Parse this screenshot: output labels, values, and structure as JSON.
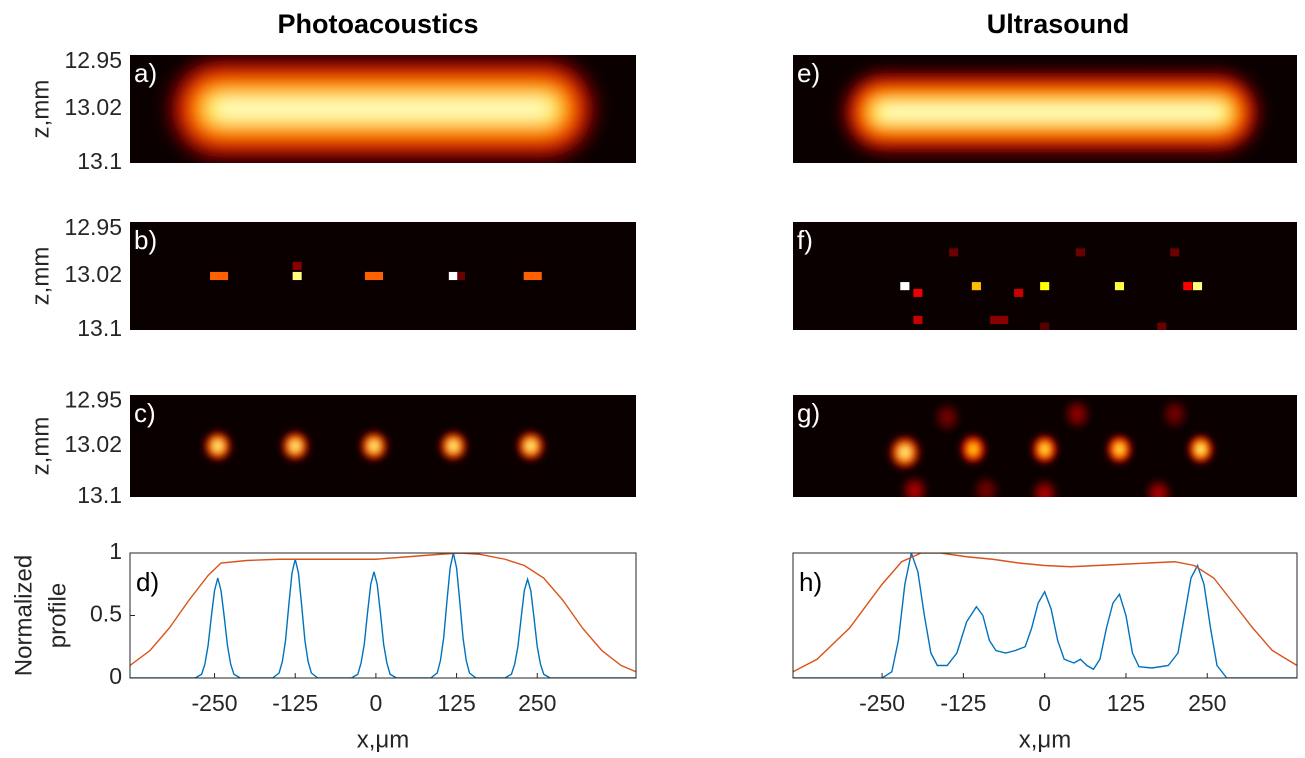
{
  "titles": [
    "Photoacoustics",
    "Ultrasound"
  ],
  "chart_data": [
    {
      "type": "heatmap",
      "label": "a)",
      "ylabel": [
        "z,mm"
      ],
      "colormap": "hot",
      "style": "blur",
      "xlim": [
        -381,
        403
      ],
      "ylim": [
        13.1,
        12.94
      ],
      "yticks": [
        12.95,
        13.02,
        13.1
      ],
      "spots": [
        {
          "x": 10,
          "z": 13.02,
          "w": 660,
          "h": 0.15,
          "intensity": 1
        }
      ]
    },
    {
      "type": "heatmap",
      "label": "b)",
      "ylabel": [
        "z,mm"
      ],
      "colormap": "hot",
      "style": "pixel",
      "xlim": [
        -381,
        403
      ],
      "ylim": [
        13.1,
        12.94
      ],
      "yticks": [
        12.95,
        13.02,
        13.1
      ],
      "spots": [
        {
          "x": -243,
          "z": 13.02,
          "w": 28,
          "h": 0.012,
          "intensity": 0.55
        },
        {
          "x": -122,
          "z": 13.02,
          "w": 14,
          "h": 0.012,
          "intensity": 0.9
        },
        {
          "x": -122,
          "z": 13.005,
          "w": 14,
          "h": 0.012,
          "intensity": 0.2
        },
        {
          "x": -3,
          "z": 13.02,
          "w": 28,
          "h": 0.012,
          "intensity": 0.55
        },
        {
          "x": 120,
          "z": 13.02,
          "w": 14,
          "h": 0.012,
          "intensity": 1
        },
        {
          "x": 132,
          "z": 13.02,
          "w": 12,
          "h": 0.012,
          "intensity": 0.15
        },
        {
          "x": 243,
          "z": 13.02,
          "w": 28,
          "h": 0.012,
          "intensity": 0.55
        }
      ]
    },
    {
      "type": "heatmap",
      "label": "c)",
      "ylabel": [
        "z,mm"
      ],
      "colormap": "hot",
      "style": "blur",
      "xlim": [
        -381,
        403
      ],
      "ylim": [
        13.1,
        12.94
      ],
      "yticks": [
        12.95,
        13.02,
        13.1
      ],
      "spots": [
        {
          "x": -245,
          "z": 13.02,
          "w": 42,
          "h": 0.045,
          "intensity": 1
        },
        {
          "x": -125,
          "z": 13.02,
          "w": 42,
          "h": 0.045,
          "intensity": 1
        },
        {
          "x": -3,
          "z": 13.02,
          "w": 42,
          "h": 0.045,
          "intensity": 1
        },
        {
          "x": 120,
          "z": 13.02,
          "w": 42,
          "h": 0.045,
          "intensity": 1
        },
        {
          "x": 240,
          "z": 13.02,
          "w": 42,
          "h": 0.045,
          "intensity": 1
        }
      ]
    },
    {
      "type": "line",
      "label": "d)",
      "ylabel": [
        "Normalized",
        "profile"
      ],
      "xlabel": "x,μm",
      "xlim": [
        -381,
        403
      ],
      "ylim": [
        0,
        1
      ],
      "yticks": [
        0,
        0.5,
        1
      ],
      "xticks": [
        -250,
        -125,
        0,
        125,
        250
      ],
      "series": [
        {
          "color": "#0072bd",
          "x": [
            -381,
            -280,
            -270,
            -265,
            -260,
            -255,
            -250,
            -245,
            -240,
            -235,
            -230,
            -225,
            -220,
            -210,
            -160,
            -150,
            -145,
            -140,
            -135,
            -130,
            -125,
            -120,
            -115,
            -110,
            -105,
            -100,
            -90,
            -38,
            -28,
            -23,
            -18,
            -13,
            -8,
            -3,
            2,
            7,
            12,
            17,
            22,
            32,
            85,
            95,
            100,
            105,
            110,
            115,
            120,
            125,
            130,
            135,
            140,
            145,
            155,
            200,
            210,
            215,
            220,
            225,
            230,
            235,
            240,
            245,
            250,
            255,
            260,
            270,
            403
          ],
          "values": [
            0,
            0,
            0.03,
            0.11,
            0.26,
            0.49,
            0.7,
            0.8,
            0.7,
            0.49,
            0.26,
            0.11,
            0.03,
            0,
            0,
            0.04,
            0.13,
            0.3,
            0.58,
            0.84,
            0.95,
            0.84,
            0.58,
            0.3,
            0.13,
            0.04,
            0,
            0,
            0.03,
            0.12,
            0.27,
            0.52,
            0.75,
            0.85,
            0.75,
            0.52,
            0.27,
            0.12,
            0.03,
            0,
            0,
            0.04,
            0.14,
            0.32,
            0.61,
            0.88,
            1,
            0.88,
            0.61,
            0.32,
            0.14,
            0.04,
            0,
            0,
            0.03,
            0.11,
            0.25,
            0.48,
            0.7,
            0.79,
            0.7,
            0.48,
            0.25,
            0.11,
            0.03,
            0,
            0
          ]
        },
        {
          "color": "#d95319",
          "x": [
            -381,
            -350,
            -320,
            -290,
            -260,
            -240,
            -200,
            -150,
            -100,
            -50,
            0,
            50,
            100,
            130,
            160,
            200,
            230,
            260,
            290,
            320,
            350,
            380,
            403
          ],
          "values": [
            0.1,
            0.22,
            0.4,
            0.62,
            0.82,
            0.92,
            0.94,
            0.95,
            0.95,
            0.95,
            0.95,
            0.97,
            0.99,
            1,
            0.99,
            0.95,
            0.9,
            0.8,
            0.62,
            0.4,
            0.22,
            0.1,
            0.05
          ]
        }
      ]
    },
    {
      "type": "heatmap",
      "label": "e)",
      "colormap": "hot",
      "style": "blur",
      "xlim": [
        -387,
        388
      ],
      "ylim": [
        13.1,
        12.94
      ],
      "spots": [
        {
          "x": 10,
          "z": 13.025,
          "w": 640,
          "h": 0.12,
          "intensity": 1
        }
      ]
    },
    {
      "type": "heatmap",
      "label": "f)",
      "colormap": "hot",
      "style": "pixel",
      "xlim": [
        -387,
        388
      ],
      "ylim": [
        13.1,
        12.94
      ],
      "spots": [
        {
          "x": -215,
          "z": 13.035,
          "w": 14,
          "h": 0.012,
          "intensity": 1
        },
        {
          "x": -195,
          "z": 13.045,
          "w": 14,
          "h": 0.012,
          "intensity": 0.35
        },
        {
          "x": -195,
          "z": 13.085,
          "w": 14,
          "h": 0.012,
          "intensity": 0.3
        },
        {
          "x": -105,
          "z": 13.035,
          "w": 14,
          "h": 0.012,
          "intensity": 0.7
        },
        {
          "x": -40,
          "z": 13.045,
          "w": 14,
          "h": 0.012,
          "intensity": 0.3
        },
        {
          "x": 0,
          "z": 13.035,
          "w": 14,
          "h": 0.012,
          "intensity": 0.8
        },
        {
          "x": -70,
          "z": 13.085,
          "w": 28,
          "h": 0.012,
          "intensity": 0.2
        },
        {
          "x": 115,
          "z": 13.035,
          "w": 14,
          "h": 0.012,
          "intensity": 0.85
        },
        {
          "x": 220,
          "z": 13.035,
          "w": 14,
          "h": 0.012,
          "intensity": 0.4
        },
        {
          "x": 235,
          "z": 13.035,
          "w": 14,
          "h": 0.012,
          "intensity": 0.9
        },
        {
          "x": -140,
          "z": 12.985,
          "w": 14,
          "h": 0.012,
          "intensity": 0.15
        },
        {
          "x": 55,
          "z": 12.985,
          "w": 14,
          "h": 0.012,
          "intensity": 0.15
        },
        {
          "x": 200,
          "z": 12.985,
          "w": 14,
          "h": 0.012,
          "intensity": 0.15
        },
        {
          "x": 180,
          "z": 13.095,
          "w": 14,
          "h": 0.012,
          "intensity": 0.15
        },
        {
          "x": 0,
          "z": 13.095,
          "w": 14,
          "h": 0.012,
          "intensity": 0.12
        }
      ]
    },
    {
      "type": "heatmap",
      "label": "g)",
      "colormap": "hot",
      "style": "blur",
      "xlim": [
        -387,
        388
      ],
      "ylim": [
        13.1,
        12.94
      ],
      "spots": [
        {
          "x": -215,
          "z": 13.03,
          "w": 46,
          "h": 0.05,
          "intensity": 1
        },
        {
          "x": -110,
          "z": 13.025,
          "w": 40,
          "h": 0.045,
          "intensity": 0.85
        },
        {
          "x": 0,
          "z": 13.025,
          "w": 40,
          "h": 0.045,
          "intensity": 0.9
        },
        {
          "x": 115,
          "z": 13.025,
          "w": 40,
          "h": 0.045,
          "intensity": 0.9
        },
        {
          "x": 240,
          "z": 13.025,
          "w": 40,
          "h": 0.045,
          "intensity": 0.95
        },
        {
          "x": -150,
          "z": 12.975,
          "w": 40,
          "h": 0.045,
          "intensity": 0.2
        },
        {
          "x": 50,
          "z": 12.97,
          "w": 40,
          "h": 0.045,
          "intensity": 0.25
        },
        {
          "x": 200,
          "z": 12.97,
          "w": 40,
          "h": 0.045,
          "intensity": 0.2
        },
        {
          "x": -200,
          "z": 13.09,
          "w": 40,
          "h": 0.045,
          "intensity": 0.3
        },
        {
          "x": 0,
          "z": 13.095,
          "w": 40,
          "h": 0.045,
          "intensity": 0.3
        },
        {
          "x": 175,
          "z": 13.095,
          "w": 40,
          "h": 0.045,
          "intensity": 0.3
        },
        {
          "x": -90,
          "z": 13.09,
          "w": 40,
          "h": 0.045,
          "intensity": 0.2
        }
      ]
    },
    {
      "type": "line",
      "label": "h)",
      "xlabel": "x,μm",
      "xlim": [
        -387,
        388
      ],
      "ylim": [
        0,
        1
      ],
      "xticks": [
        -250,
        -125,
        0,
        125,
        250
      ],
      "series": [
        {
          "color": "#0072bd",
          "x": [
            -387,
            -250,
            -235,
            -225,
            -215,
            -205,
            -195,
            -185,
            -175,
            -165,
            -150,
            -135,
            -120,
            -105,
            -95,
            -85,
            -75,
            -60,
            -45,
            -30,
            -20,
            -10,
            0,
            10,
            20,
            30,
            45,
            55,
            65,
            75,
            85,
            95,
            105,
            115,
            125,
            135,
            145,
            165,
            190,
            205,
            215,
            225,
            235,
            245,
            255,
            265,
            280,
            388
          ],
          "values": [
            0,
            0,
            0.05,
            0.3,
            0.75,
            1,
            0.85,
            0.5,
            0.2,
            0.1,
            0.1,
            0.2,
            0.45,
            0.57,
            0.5,
            0.3,
            0.22,
            0.2,
            0.22,
            0.25,
            0.4,
            0.6,
            0.69,
            0.55,
            0.3,
            0.15,
            0.12,
            0.15,
            0.1,
            0.07,
            0.15,
            0.4,
            0.6,
            0.67,
            0.5,
            0.2,
            0.09,
            0.08,
            0.1,
            0.2,
            0.5,
            0.8,
            0.9,
            0.75,
            0.4,
            0.1,
            0,
            0
          ]
        },
        {
          "color": "#d95319",
          "x": [
            -387,
            -350,
            -300,
            -250,
            -220,
            -190,
            -160,
            -120,
            -80,
            -40,
            0,
            40,
            80,
            120,
            160,
            200,
            230,
            260,
            290,
            320,
            350,
            388
          ],
          "values": [
            0.05,
            0.15,
            0.4,
            0.75,
            0.93,
            1,
            1,
            0.97,
            0.95,
            0.92,
            0.9,
            0.89,
            0.9,
            0.91,
            0.92,
            0.93,
            0.9,
            0.8,
            0.6,
            0.4,
            0.22,
            0.1
          ]
        }
      ]
    }
  ]
}
